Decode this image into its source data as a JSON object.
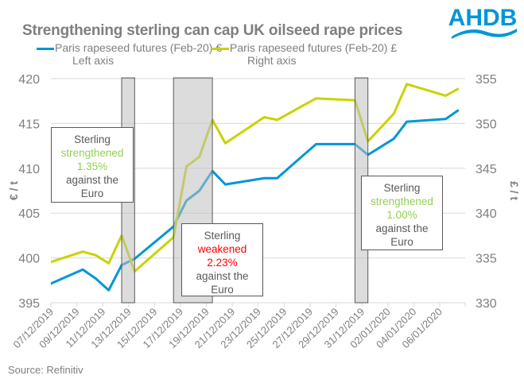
{
  "header": {
    "title": "Strengthening sterling can cap UK oilseed rape prices",
    "logo_text": "AHDB"
  },
  "legend": [
    {
      "label": "Paris rapeseed futures (Feb-20) €",
      "sub": "Left axis",
      "color": "#0096d6"
    },
    {
      "label": "Paris rapeseed futures (Feb-20) £",
      "sub": "Right axis",
      "color": "#c8d400"
    }
  ],
  "annotations": [
    {
      "line1": "Sterling",
      "line2": "strengthened",
      "line3": "1.35%",
      "line4": "against the",
      "line5": "Euro",
      "tone": "green"
    },
    {
      "line1": "Sterling",
      "line2": "weakened",
      "line3": "2.23%",
      "line4": "against the",
      "line5": "Euro",
      "tone": "red"
    },
    {
      "line1": "Sterling",
      "line2": "strengthened",
      "line3": "1.00%",
      "line4": "against the",
      "line5": "Euro",
      "tone": "green"
    }
  ],
  "source": "Source: Refinitiv",
  "chart_data": {
    "type": "line",
    "title": "Strengthening sterling can cap UK oilseed rape prices",
    "xlabel": "",
    "ylabel": "€ / t",
    "y2label": "£ / t",
    "ylim": [
      395,
      420
    ],
    "y2lim": [
      330,
      355
    ],
    "yticks": [
      395,
      400,
      405,
      410,
      415,
      420
    ],
    "y2ticks": [
      330,
      335,
      340,
      345,
      350,
      355
    ],
    "xticks": [
      "07/12/2019",
      "09/12/2019",
      "11/12/2019",
      "13/12/2019",
      "15/12/2019",
      "17/12/2019",
      "19/12/2019",
      "21/12/2019",
      "23/12/2019",
      "25/12/2019",
      "27/12/2019",
      "29/12/2019",
      "31/12/2019",
      "02/01/2020",
      "04/01/2020",
      "06/01/2020"
    ],
    "x": [
      "06/12/2019",
      "09/12/2019",
      "10/12/2019",
      "11/12/2019",
      "12/12/2019",
      "13/12/2019",
      "16/12/2019",
      "17/12/2019",
      "18/12/2019",
      "19/12/2019",
      "20/12/2019",
      "23/12/2019",
      "24/12/2019",
      "27/12/2019",
      "30/12/2019",
      "31/12/2019",
      "02/01/2020",
      "03/01/2020",
      "06/01/2020",
      "07/01/2020"
    ],
    "series": [
      {
        "name": "Paris rapeseed futures (Feb-20) €",
        "axis": "left",
        "color": "#0096d6",
        "values": [
          396.8,
          398.7,
          397.7,
          396.4,
          399.2,
          399.9,
          403.5,
          406.4,
          407.5,
          409.7,
          408.2,
          408.9,
          408.9,
          412.7,
          412.7,
          411.5,
          413.3,
          415.2,
          415.5,
          416.5
        ]
      },
      {
        "name": "Paris rapeseed futures (Feb-20) £",
        "axis": "right",
        "color": "#c8d400",
        "values": [
          334.3,
          335.7,
          335.3,
          334.4,
          337.5,
          333.5,
          337.3,
          345.2,
          346.3,
          350.4,
          347.8,
          350.7,
          350.4,
          352.8,
          352.6,
          348.0,
          351.1,
          354.4,
          353.1,
          353.9
        ]
      }
    ],
    "shaded_periods": [
      {
        "from": "12/12/2019",
        "to": "13/12/2019"
      },
      {
        "from": "16/12/2019",
        "to": "19/12/2019"
      },
      {
        "from": "30/12/2019",
        "to": "31/12/2019"
      }
    ],
    "grid": true,
    "legend_position": "top"
  }
}
